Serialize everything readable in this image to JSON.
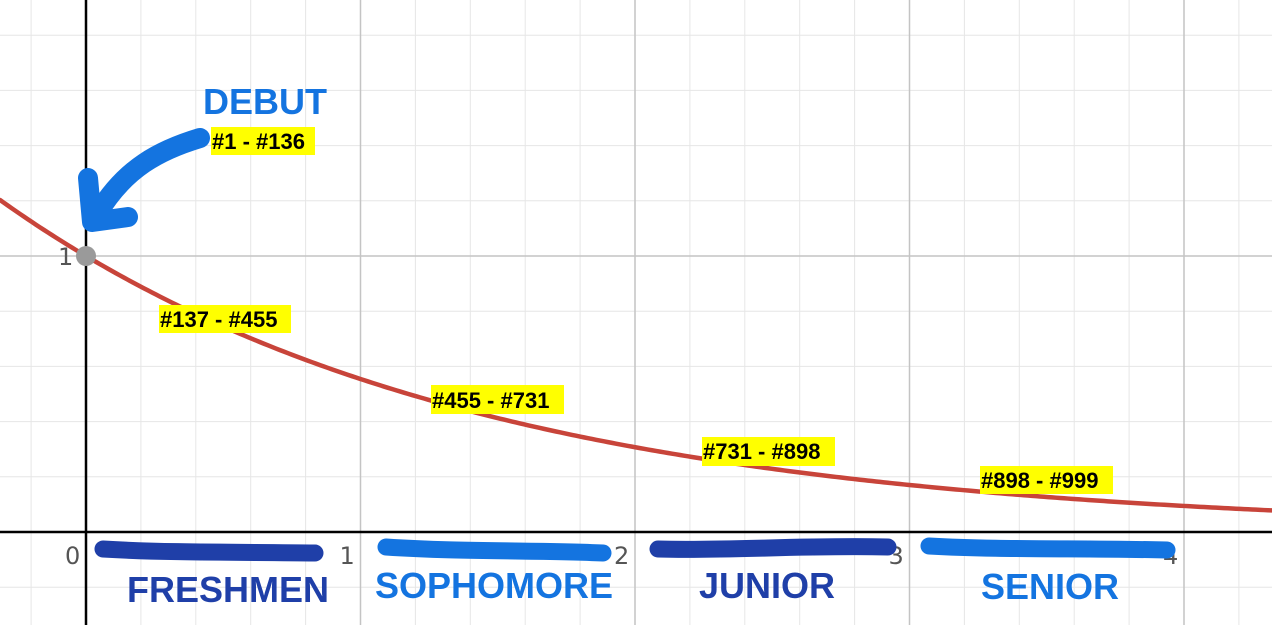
{
  "chart_data": {
    "type": "line",
    "title": "",
    "xlabel": "",
    "ylabel": "",
    "xlim": [
      -0.31,
      4.31
    ],
    "ylim": [
      -0.31,
      1.83
    ],
    "grid": true,
    "x_ticks": [
      "0",
      "1",
      "2",
      "3",
      "4"
    ],
    "y_ticks": [
      "1"
    ],
    "curve": {
      "function": "exp(-k*x)",
      "k": 0.59,
      "color": "#c8443a",
      "x": [
        -0.31,
        0,
        0.5,
        1,
        1.5,
        2,
        2.5,
        3,
        3.5,
        4,
        4.31
      ],
      "y": [
        1.2,
        1.0,
        0.74,
        0.55,
        0.41,
        0.31,
        0.23,
        0.17,
        0.13,
        0.09,
        0.08
      ]
    },
    "point": {
      "x": 0,
      "y": 1,
      "color": "#9a9a9a"
    },
    "annotations": [
      {
        "id": "debut",
        "text": "DEBUT",
        "color": "#1474e0"
      },
      {
        "id": "range-1",
        "text": "#1 - #136",
        "highlight": "#ffff00"
      },
      {
        "id": "range-2",
        "text": "#137 - #455",
        "highlight": "#ffff00"
      },
      {
        "id": "range-3",
        "text": "#455 - #731",
        "highlight": "#ffff00"
      },
      {
        "id": "range-4",
        "text": "#731 - #898",
        "highlight": "#ffff00"
      },
      {
        "id": "range-5",
        "text": "#898 - #999",
        "highlight": "#ffff00"
      }
    ],
    "stages": [
      {
        "label": "FRESHMEN",
        "from": 0,
        "to": 1,
        "color": "#1f3fa8"
      },
      {
        "label": "SOPHOMORE",
        "from": 1,
        "to": 2,
        "color": "#1474e0"
      },
      {
        "label": "JUNIOR",
        "from": 2,
        "to": 3,
        "color": "#1f3fa8"
      },
      {
        "label": "SENIOR",
        "from": 3,
        "to": 4,
        "color": "#1474e0"
      }
    ]
  }
}
